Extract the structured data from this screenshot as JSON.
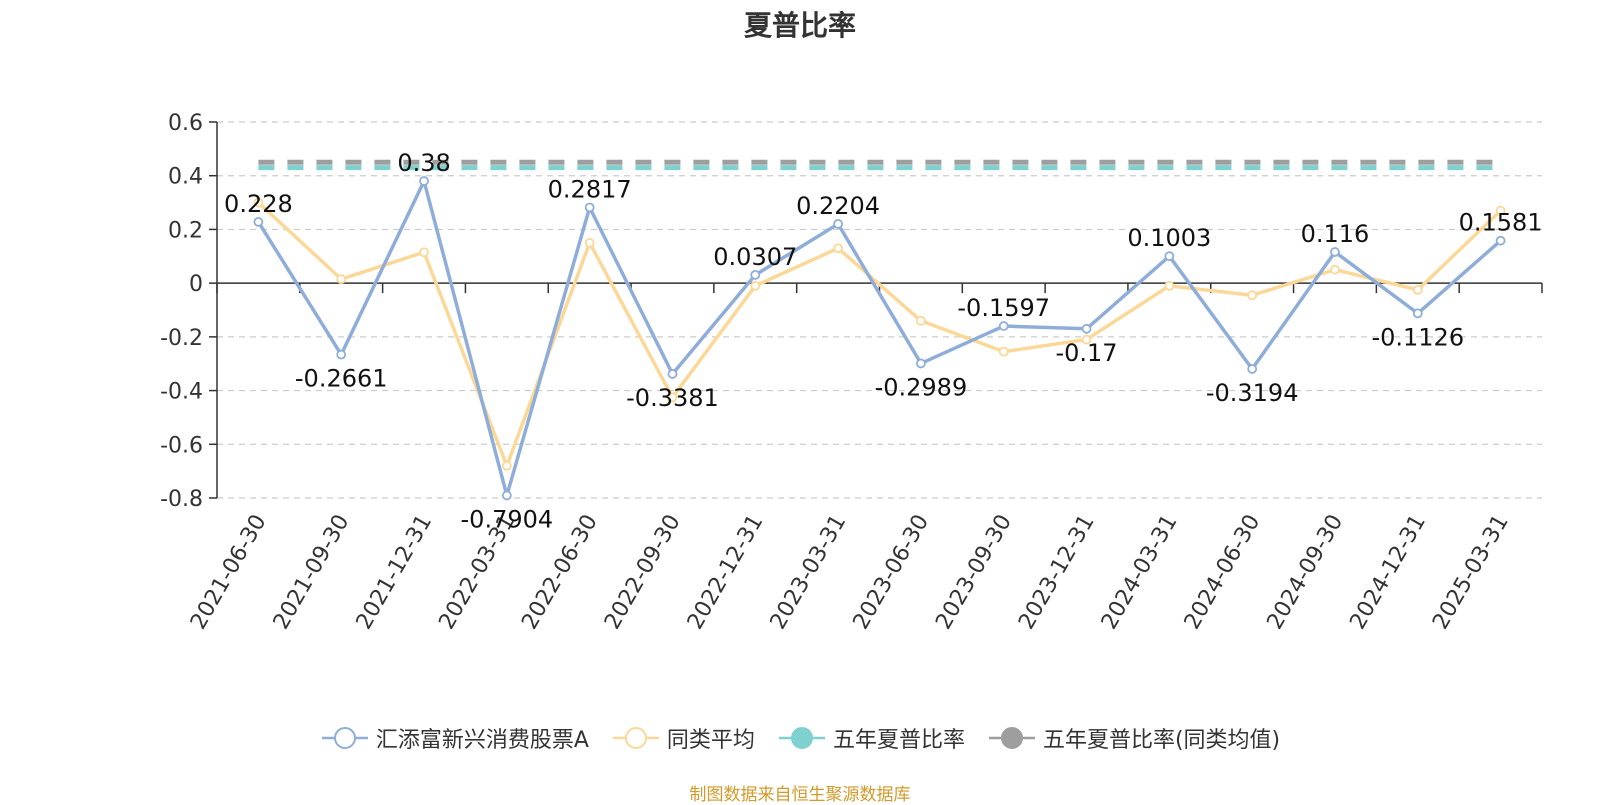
{
  "chart_data": {
    "type": "line",
    "title": "夏普比率",
    "categories": [
      "2021-06-30",
      "2021-09-30",
      "2021-12-31",
      "2022-03-31",
      "2022-06-30",
      "2022-09-30",
      "2022-12-31",
      "2023-03-31",
      "2023-06-30",
      "2023-09-30",
      "2023-12-31",
      "2024-03-31",
      "2024-06-30",
      "2024-09-30",
      "2024-12-31",
      "2025-03-31"
    ],
    "ylim": [
      -0.8,
      0.6
    ],
    "yticks": [
      0.6,
      0.4,
      0.2,
      0,
      -0.2,
      -0.4,
      -0.6,
      -0.8
    ],
    "ytick_labels": [
      "0.6",
      "0.4",
      "0.2",
      "0",
      "-0.2",
      "-0.4",
      "-0.6",
      "-0.8"
    ],
    "grid": true,
    "legend_position": "bottom",
    "series": [
      {
        "name": "汇添富新兴消费股票A",
        "color": "#8fadd9",
        "marker": "hollow-circle",
        "values": [
          0.228,
          -0.2661,
          0.38,
          -0.7904,
          0.2817,
          -0.3381,
          0.0307,
          0.2204,
          -0.2989,
          -0.1597,
          -0.17,
          0.1003,
          -0.3194,
          0.116,
          -0.1126,
          0.1581
        ],
        "labels": [
          "0.228",
          "-0.2661",
          "0.38",
          "-0.7904",
          "0.2817",
          "-0.3381",
          "0.0307",
          "0.2204",
          "-0.2989",
          "-0.1597",
          "-0.17",
          "0.1003",
          "-0.3194",
          "0.116",
          "-0.1126",
          "0.1581"
        ]
      },
      {
        "name": "同类平均",
        "color": "#fbd898",
        "marker": "hollow-circle",
        "values": [
          0.3,
          0.015,
          0.115,
          -0.68,
          0.15,
          -0.425,
          -0.01,
          0.13,
          -0.14,
          -0.255,
          -0.21,
          -0.01,
          -0.045,
          0.05,
          -0.025,
          0.27
        ]
      },
      {
        "name": "五年夏普比率",
        "color": "#7fd1cf",
        "marker": "filled-circle",
        "style": "dashed",
        "values": [
          0.43,
          0.43,
          0.43,
          0.43,
          0.43,
          0.43,
          0.43,
          0.43,
          0.43,
          0.43,
          0.43,
          0.43,
          0.43,
          0.43,
          0.43,
          0.43
        ]
      },
      {
        "name": "五年夏普比率(同类均值)",
        "color": "#9e9e9e",
        "marker": "filled-circle",
        "style": "dashed",
        "values": [
          0.45,
          0.45,
          0.45,
          0.45,
          0.45,
          0.45,
          0.45,
          0.45,
          0.45,
          0.45,
          0.45,
          0.45,
          0.45,
          0.45,
          0.45,
          0.45
        ]
      }
    ]
  },
  "footer": {
    "source": "制图数据来自恒生聚源数据库"
  }
}
